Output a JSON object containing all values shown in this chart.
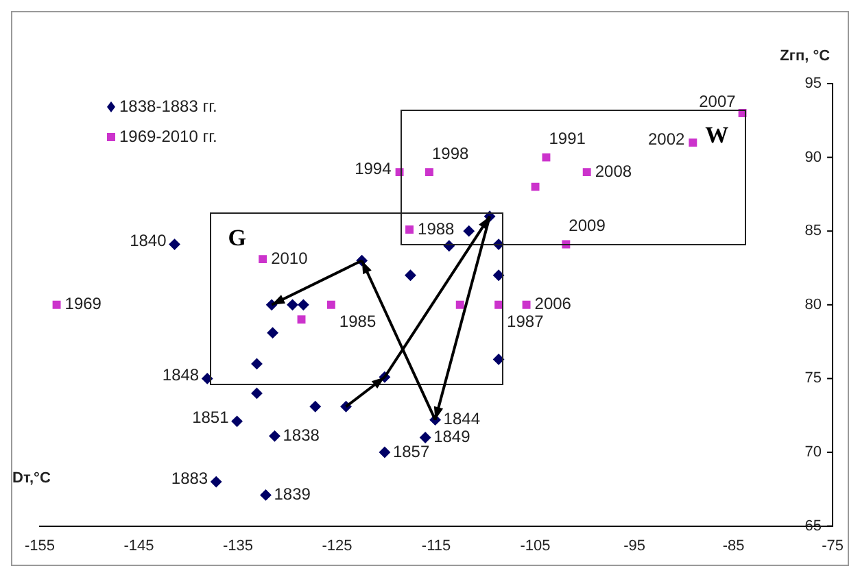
{
  "chart_data": {
    "type": "scatter",
    "xlabel": "Dт,°C",
    "ylabel": "Zгп, °C",
    "xlim": [
      -155,
      -75
    ],
    "xticks": [
      -155,
      -145,
      -135,
      -125,
      -115,
      -105,
      -95,
      -85,
      -75
    ],
    "ylim": [
      65,
      95
    ],
    "yticks": [
      65,
      70,
      75,
      80,
      85,
      90,
      95
    ],
    "legend": "top left",
    "series": [
      {
        "name": "1838-1883 гг.",
        "marker": "diamond",
        "color": "#000066",
        "x": [
          -141.4,
          -138.1,
          -135.1,
          -131.3,
          -137.2,
          -132.2,
          -133.1,
          -127.2,
          -124.1,
          -120.2,
          -115.1,
          -116.1,
          -120.2,
          -133.1,
          -108.7,
          -131.6,
          -129.5,
          -128.4,
          -131.5,
          -122.5,
          -117.6,
          -111.7,
          -113.7,
          -109.6,
          -108.7,
          -108.7
        ],
        "values": [
          84.1,
          75,
          72.1,
          71.1,
          68,
          67.1,
          74,
          73.1,
          73.1,
          75.1,
          72.2,
          71,
          70,
          76,
          76.3,
          80,
          80,
          80,
          78.1,
          83,
          82,
          85,
          84,
          86,
          84.1,
          82
        ]
      },
      {
        "name": "1969-2010 гг.",
        "marker": "square",
        "color": "#cc33cc",
        "x": [
          -153.3,
          -132.5,
          -118.7,
          -115.7,
          -117.7,
          -128.6,
          -125.6,
          -103.9,
          -105,
          -99.8,
          -89.1,
          -84.1,
          -101.9,
          -105.9,
          -108.7,
          -112.6
        ],
        "values": [
          80,
          83.1,
          89,
          89,
          85.1,
          79,
          80,
          90,
          88,
          89,
          91,
          93,
          84.1,
          80,
          80,
          80
        ]
      }
    ],
    "annotations": [
      "G",
      "W",
      {
        "text": "1840",
        "x": -141.4,
        "y": 84.1
      },
      {
        "text": "1848",
        "x": -138.1,
        "y": 75
      },
      {
        "text": "1851",
        "x": -135.1,
        "y": 72.1
      },
      {
        "text": "1838",
        "x": -131.3,
        "y": 71.1
      },
      {
        "text": "1883",
        "x": -137.2,
        "y": 68
      },
      {
        "text": "1839",
        "x": -132.2,
        "y": 67.1
      },
      {
        "text": "1844",
        "x": -115.1,
        "y": 72.2
      },
      {
        "text": "1849",
        "x": -116.1,
        "y": 71
      },
      {
        "text": "1857",
        "x": -120.2,
        "y": 70
      },
      {
        "text": "1969",
        "x": -153.3,
        "y": 80
      },
      {
        "text": "2010",
        "x": -132.5,
        "y": 83.1
      },
      {
        "text": "1994",
        "x": -118.7,
        "y": 89
      },
      {
        "text": "1998",
        "x": -115.7,
        "y": 89
      },
      {
        "text": "1988",
        "x": -117.7,
        "y": 85.1
      },
      {
        "text": "1985",
        "x": -125.6,
        "y": 80
      },
      {
        "text": "1991",
        "x": -103.9,
        "y": 90
      },
      {
        "text": "2008",
        "x": -99.8,
        "y": 89
      },
      {
        "text": "2002",
        "x": -89.1,
        "y": 91
      },
      {
        "text": "2007",
        "x": -84.1,
        "y": 93
      },
      {
        "text": "2009",
        "x": -101.9,
        "y": 84.1
      },
      {
        "text": "2006",
        "x": -105.9,
        "y": 80
      },
      {
        "text": "1987",
        "x": -108.7,
        "y": 80
      }
    ]
  }
}
